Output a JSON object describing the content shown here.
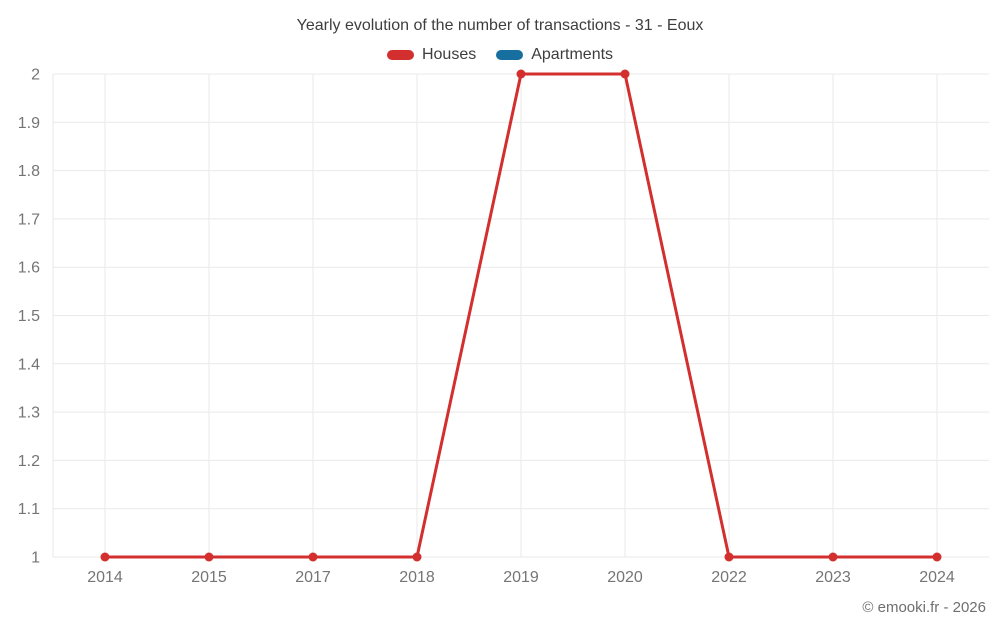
{
  "header": {
    "title": "Yearly evolution of the number of transactions - 31 - Eoux"
  },
  "footer": {
    "credit": "© emooki.fr - 2026"
  },
  "chart_data": {
    "type": "line",
    "title": "Yearly evolution of the number of transactions - 31 - Eoux",
    "categories": [
      "2014",
      "2015",
      "2017",
      "2018",
      "2019",
      "2020",
      "2022",
      "2023",
      "2024"
    ],
    "series": [
      {
        "name": "Houses",
        "color": "#d32f2f",
        "values": [
          1,
          1,
          1,
          1,
          2,
          2,
          1,
          1,
          1
        ]
      },
      {
        "name": "Apartments",
        "color": "#176fa0",
        "values": []
      }
    ],
    "xlabel": "",
    "ylabel": "",
    "ylim": [
      1,
      2
    ],
    "y_ticks": [
      1,
      1.1,
      1.2,
      1.3,
      1.4,
      1.5,
      1.6,
      1.7,
      1.8,
      1.9,
      2
    ],
    "y_tick_labels": [
      "1",
      "1.1",
      "1.2",
      "1.3",
      "1.4",
      "1.5",
      "1.6",
      "1.7",
      "1.8",
      "1.9",
      "2"
    ],
    "grid": true,
    "legend_position": "top",
    "grid_color": "#e9e9e9",
    "axis_tick_color": "#757575",
    "point_radius": 4.5,
    "line_width": 3
  }
}
